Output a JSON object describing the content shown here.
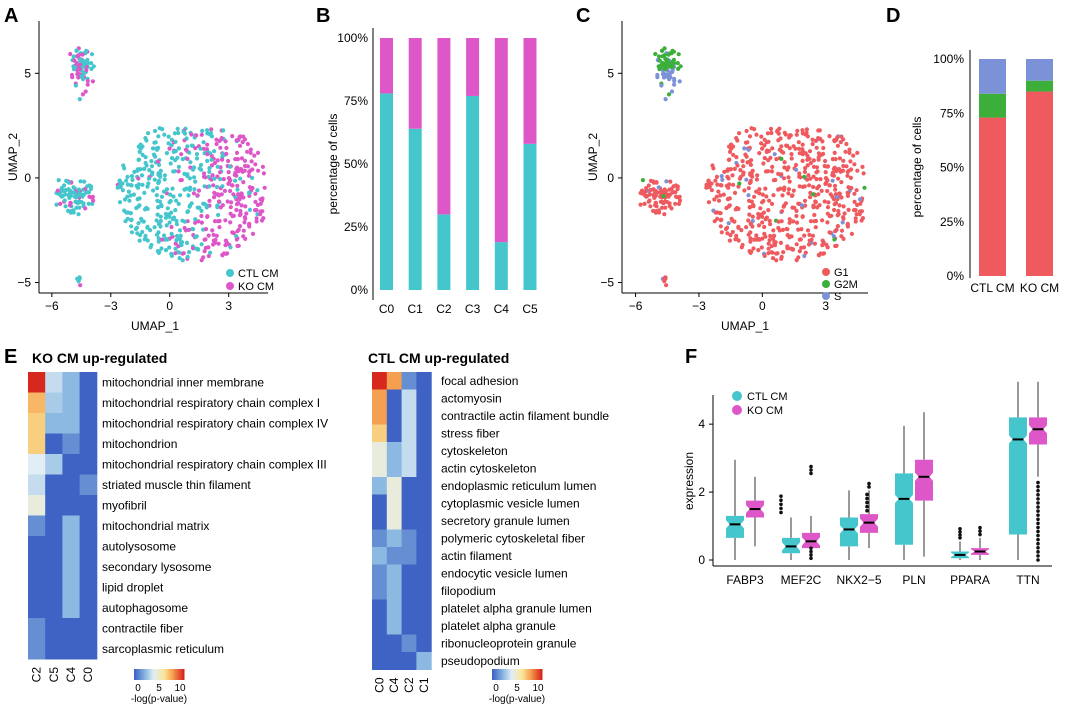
{
  "colors": {
    "ctl": "#45C6CC",
    "ko": "#DE57C8",
    "g1": "#EE5A5E",
    "g2m": "#3BAF3A",
    "s": "#7C92D8"
  },
  "chart_data": [
    {
      "panel": "A",
      "type": "scatter",
      "xlabel": "UMAP_1",
      "ylabel": "UMAP_2",
      "xticks": [
        "−6",
        "−3",
        "0",
        "3"
      ],
      "yticks": [
        "5",
        "0",
        "−5"
      ],
      "xlim": [
        -6.5,
        5
      ],
      "ylim": [
        -5.5,
        7.5
      ],
      "legend": [
        "CTL CM",
        "KO CM"
      ]
    },
    {
      "panel": "B",
      "type": "bar",
      "stacked": true,
      "categories": [
        "C0",
        "C1",
        "C2",
        "C3",
        "C4",
        "C5"
      ],
      "series": [
        {
          "name": "CTL CM",
          "values": [
            78,
            64,
            30,
            77,
            19,
            58
          ]
        },
        {
          "name": "KO CM",
          "values": [
            22,
            36,
            70,
            23,
            81,
            42
          ]
        }
      ],
      "ylabel": "percentage of cells",
      "yticks": [
        "0%",
        "25%",
        "50%",
        "75%",
        "100%"
      ],
      "ylim": [
        0,
        100
      ]
    },
    {
      "panel": "C",
      "type": "scatter",
      "xlabel": "UMAP_1",
      "ylabel": "UMAP_2",
      "xticks": [
        "−6",
        "−3",
        "0",
        "3"
      ],
      "yticks": [
        "5",
        "0",
        "−5"
      ],
      "xlim": [
        -6.5,
        5
      ],
      "ylim": [
        -5.5,
        7.5
      ],
      "legend": [
        "G1",
        "G2M",
        "S"
      ]
    },
    {
      "panel": "D",
      "type": "bar",
      "stacked": true,
      "categories": [
        "CTL CM",
        "KO CM"
      ],
      "series": [
        {
          "name": "G1",
          "values": [
            73,
            85
          ]
        },
        {
          "name": "G2M",
          "values": [
            11,
            5
          ]
        },
        {
          "name": "S",
          "values": [
            16,
            10
          ]
        }
      ],
      "ylabel": "percentage of cells",
      "yticks": [
        "0%",
        "25%",
        "50%",
        "75%",
        "100%"
      ],
      "ylim": [
        0,
        100
      ]
    },
    {
      "panel": "E1",
      "type": "heatmap",
      "title": "KO CM up-regulated",
      "columns": [
        "C2",
        "C5",
        "C4",
        "C0"
      ],
      "rows": [
        "mitochondrial inner membrane",
        "mitochondrial respiratory chain complex I",
        "mitochondrial respiratory chain complex IV",
        "mitochondrion",
        "mitochondrial respiratory chain complex III",
        "striated muscle thin filament",
        "myofibril",
        "mitochondrial matrix",
        "autolysosome",
        "secondary lysosome",
        "lipid droplet",
        "autophagosome",
        "contractile fiber",
        "sarcoplasmic reticulum"
      ],
      "values": [
        [
          10,
          4,
          3,
          1
        ],
        [
          7.5,
          3.5,
          3,
          1
        ],
        [
          7,
          3,
          3,
          1
        ],
        [
          7,
          1,
          2,
          1
        ],
        [
          4.5,
          3.5,
          1,
          1
        ],
        [
          4,
          1,
          1,
          2
        ],
        [
          5,
          1,
          1,
          1
        ],
        [
          2,
          1,
          3,
          1
        ],
        [
          1,
          1,
          3,
          1
        ],
        [
          1,
          1,
          3,
          1
        ],
        [
          1,
          1,
          3,
          1
        ],
        [
          1,
          1,
          3,
          1
        ],
        [
          2,
          1,
          1,
          1
        ],
        [
          2,
          1,
          1,
          1
        ]
      ],
      "colorbar_ticks": [
        "0",
        "5",
        "10"
      ],
      "colorbar_label": "-log(p-value)"
    },
    {
      "panel": "E2",
      "type": "heatmap",
      "title": "CTL CM up-regulated",
      "columns": [
        "C0",
        "C4",
        "C2",
        "C1"
      ],
      "rows": [
        "focal adhesion",
        "actomyosin",
        "contractile actin filament bundle",
        "stress fiber",
        "cytoskeleton",
        "actin cytoskeleton",
        "endoplasmic reticulum lumen",
        "cytoplasmic vesicle lumen",
        "secretory granule lumen",
        "polymeric cytoskeletal fiber",
        "actin filament",
        "endocytic vesicle lumen",
        "filopodium",
        "platelet alpha granule lumen",
        "platelet alpha granule",
        "ribonucleoprotein granule",
        "pseudopodium"
      ],
      "values": [
        [
          10,
          8,
          2,
          1
        ],
        [
          8,
          1,
          4,
          1
        ],
        [
          8,
          1,
          4,
          1
        ],
        [
          7,
          1,
          4,
          1
        ],
        [
          5,
          3,
          4,
          1
        ],
        [
          5,
          3,
          4,
          1
        ],
        [
          3,
          5,
          1,
          1
        ],
        [
          1,
          5,
          1,
          1
        ],
        [
          1,
          5,
          1,
          1
        ],
        [
          2,
          3,
          2,
          1
        ],
        [
          3,
          2,
          2,
          1
        ],
        [
          2,
          3,
          1,
          1
        ],
        [
          2,
          3,
          1,
          1
        ],
        [
          1,
          3,
          1,
          1
        ],
        [
          1,
          3,
          1,
          1
        ],
        [
          1,
          1,
          2,
          1
        ],
        [
          1,
          1,
          1,
          3
        ]
      ],
      "colorbar_ticks": [
        "0",
        "5",
        "10"
      ],
      "colorbar_label": "-log(p-value)"
    },
    {
      "panel": "F",
      "type": "box",
      "categories": [
        "FABP3",
        "MEF2C",
        "NKX2−5",
        "PLN",
        "PPARA",
        "TTN"
      ],
      "ylabel": "expression",
      "yticks": [
        "0",
        "2",
        "4"
      ],
      "ylim": [
        0,
        5.3
      ],
      "legend": [
        "CTL CM",
        "KO CM"
      ],
      "series": [
        {
          "name": "CTL CM",
          "boxes": [
            {
              "q1": 0.65,
              "med": 1.05,
              "q3": 1.3,
              "lo": 0,
              "hi": 2.95
            },
            {
              "q1": 0.2,
              "med": 0.4,
              "q3": 0.65,
              "lo": 0,
              "hi": 1.25
            },
            {
              "q1": 0.4,
              "med": 0.9,
              "q3": 1.25,
              "lo": 0,
              "hi": 2.05
            },
            {
              "q1": 0.45,
              "med": 1.8,
              "q3": 2.55,
              "lo": 0,
              "hi": 3.95
            },
            {
              "q1": 0.05,
              "med": 0.15,
              "q3": 0.25,
              "lo": 0,
              "hi": 0.55
            },
            {
              "q1": 0.75,
              "med": 3.55,
              "q3": 4.2,
              "lo": 0,
              "hi": 5.25
            }
          ]
        },
        {
          "name": "KO CM",
          "boxes": [
            {
              "q1": 1.25,
              "med": 1.5,
              "q3": 1.75,
              "lo": 0.4,
              "hi": 2.45
            },
            {
              "q1": 0.35,
              "med": 0.55,
              "q3": 0.8,
              "lo": 0,
              "hi": 1.3
            },
            {
              "q1": 0.8,
              "med": 1.1,
              "q3": 1.35,
              "lo": 0.35,
              "hi": 2.05
            },
            {
              "q1": 1.75,
              "med": 2.45,
              "q3": 2.95,
              "lo": 0.1,
              "hi": 4.35
            },
            {
              "q1": 0.15,
              "med": 0.25,
              "q3": 0.35,
              "lo": 0,
              "hi": 0.65
            },
            {
              "q1": 3.4,
              "med": 3.85,
              "q3": 4.2,
              "lo": 2.45,
              "hi": 5.25
            }
          ]
        }
      ]
    }
  ]
}
